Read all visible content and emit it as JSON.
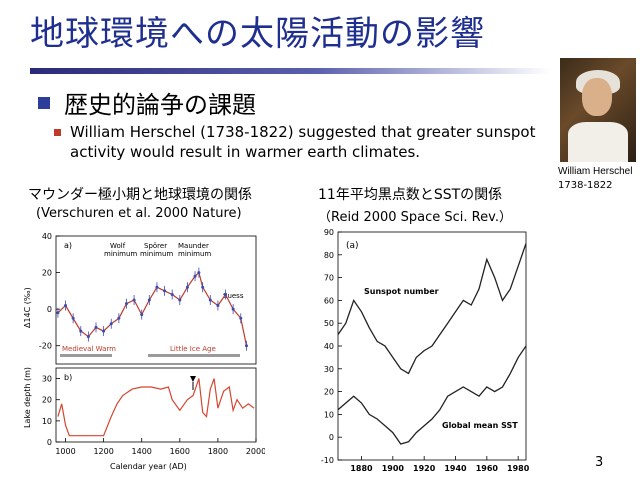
{
  "slide": {
    "title": "地球環境への太陽活動の影響",
    "bullet1": "歴史的論争の課題",
    "bullet2": "William Herschel (1738-1822) suggested that  greater sunspot activity would result in warmer earth climates.",
    "portrait_name": "William Herschel",
    "portrait_years": "1738-1822",
    "left_caption1": "マウンダー極小期と地球環境の関係",
    "left_caption2": "(Verschuren et al. 2000 Nature)",
    "right_caption1": "11年平均黒点数とSSTの関係",
    "right_caption2": "（Reid 2000 Space Sci. Rev.）",
    "page_number": "3"
  },
  "left_chart_text": {
    "panel_a": "a)",
    "panel_b": "b)",
    "wolf": "Wolf",
    "sporer": "Spörer",
    "maunder": "Maunder",
    "minimum": "minimum",
    "suess": "Suess",
    "medieval": "Medieval Warm",
    "lia": "Little Ice Age",
    "y1_label": "Δ14C (‰)",
    "y2_label": "Lake depth (m)",
    "xlabel": "Calendar year (AD)"
  },
  "right_chart_text": {
    "panel": "(a)",
    "sunspot": "Sunspot number",
    "sst": "Global mean SST"
  },
  "chart_data": [
    {
      "type": "line",
      "title": "",
      "xlabel": "Calendar year (AD)",
      "ylabel": "Δ14C (‰)",
      "xlim": [
        950,
        2000
      ],
      "ylim": [
        -30,
        40
      ],
      "xticks": [
        1000,
        1200,
        1400,
        1600,
        1800,
        2000
      ],
      "yticks": [
        -20,
        0,
        20,
        40
      ],
      "x": [
        960,
        1000,
        1040,
        1080,
        1120,
        1160,
        1200,
        1240,
        1280,
        1320,
        1360,
        1400,
        1440,
        1480,
        1520,
        1560,
        1600,
        1640,
        1680,
        1700,
        1720,
        1760,
        1800,
        1840,
        1880,
        1920,
        1950
      ],
      "series": [
        {
          "name": "",
          "values": [
            -2,
            2,
            -5,
            -12,
            -15,
            -10,
            -12,
            -8,
            -5,
            3,
            5,
            -3,
            5,
            12,
            10,
            8,
            5,
            12,
            18,
            20,
            12,
            5,
            2,
            8,
            0,
            -5,
            -20
          ]
        }
      ]
    },
    {
      "type": "line",
      "title": "",
      "xlabel": "Calendar year (AD)",
      "ylabel": "Lake depth (m)",
      "xlim": [
        950,
        2000
      ],
      "ylim": [
        0,
        35
      ],
      "xticks": [
        1000,
        1200,
        1400,
        1600,
        1800,
        2000
      ],
      "yticks": [
        0,
        10,
        20,
        30
      ],
      "x": [
        960,
        980,
        1000,
        1020,
        1050,
        1100,
        1150,
        1200,
        1240,
        1270,
        1300,
        1350,
        1400,
        1450,
        1500,
        1540,
        1560,
        1600,
        1640,
        1670,
        1700,
        1720,
        1740,
        1760,
        1780,
        1800,
        1830,
        1860,
        1880,
        1900,
        1930,
        1960,
        1990
      ],
      "series": [
        {
          "name": "",
          "values": [
            12,
            18,
            8,
            3,
            3,
            3,
            3,
            3,
            12,
            18,
            22,
            25,
            26,
            26,
            25,
            26,
            20,
            15,
            20,
            22,
            30,
            14,
            12,
            25,
            30,
            16,
            24,
            26,
            15,
            20,
            16,
            18,
            16
          ]
        }
      ]
    },
    {
      "type": "line",
      "title": "",
      "xlabel": "",
      "ylabel": "",
      "xlim": [
        1865,
        1985
      ],
      "ylim": [
        -10,
        90
      ],
      "xticks": [
        1880,
        1900,
        1920,
        1940,
        1960,
        1980
      ],
      "yticks": [
        -10,
        0,
        10,
        20,
        30,
        40,
        50,
        60,
        70,
        80,
        90
      ],
      "x": [
        1865,
        1870,
        1875,
        1880,
        1885,
        1890,
        1895,
        1900,
        1905,
        1910,
        1915,
        1920,
        1925,
        1930,
        1935,
        1940,
        1945,
        1950,
        1955,
        1960,
        1965,
        1970,
        1975,
        1980,
        1985
      ],
      "series": [
        {
          "name": "Sunspot number",
          "values": [
            45,
            50,
            60,
            55,
            48,
            42,
            40,
            35,
            30,
            28,
            35,
            38,
            40,
            45,
            50,
            55,
            60,
            58,
            65,
            78,
            70,
            60,
            65,
            75,
            85
          ]
        },
        {
          "name": "Global mean SST",
          "values": [
            12,
            15,
            18,
            15,
            10,
            8,
            5,
            2,
            -3,
            -2,
            2,
            5,
            8,
            12,
            18,
            20,
            22,
            20,
            18,
            22,
            20,
            22,
            28,
            35,
            40
          ]
        }
      ]
    }
  ]
}
